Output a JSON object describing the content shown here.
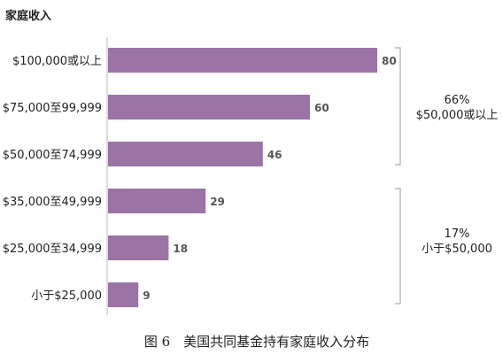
{
  "chart_data": {
    "type": "bar",
    "orientation": "horizontal",
    "title": "家庭收入",
    "categories": [
      "$100,000或以上",
      "$75,000至99,999",
      "$50,000至74,999",
      "$35,000至49,999",
      "$25,000至34,999",
      "小于$25,000"
    ],
    "values": [
      80,
      60,
      46,
      29,
      18,
      9
    ],
    "xlim": [
      0,
      100
    ],
    "grid": false,
    "bar_color": "#9b74a5",
    "groups": [
      {
        "percent": "66%",
        "label": "$50,000或以上",
        "categories": [
          "$100,000或以上",
          "$75,000至99,999",
          "$50,000至74,999"
        ]
      },
      {
        "percent": "17%",
        "label": "小于$50,000",
        "categories": [
          "$35,000至49,999",
          "$25,000至34,999",
          "小于$25,000"
        ]
      }
    ],
    "caption": "图 6　美国共同基金持有家庭收入分布"
  }
}
